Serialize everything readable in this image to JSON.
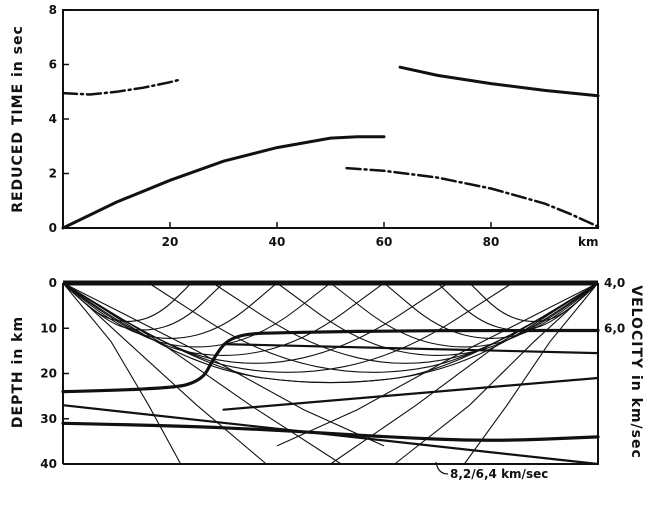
{
  "chart_data": [
    {
      "type": "line",
      "ylabel": "REDUCED TIME in sec",
      "xunit": "km",
      "xlim": [
        0,
        100
      ],
      "ylim": [
        0,
        8
      ],
      "xticks": [
        20,
        40,
        60,
        80
      ],
      "yticks": [
        0,
        2,
        4,
        6,
        8
      ],
      "grid": false,
      "series": [
        {
          "style": "dashdot",
          "x": [
            0,
            5,
            10,
            15,
            20,
            22
          ],
          "y": [
            4.95,
            4.9,
            5.0,
            5.15,
            5.35,
            5.45
          ]
        },
        {
          "style": "solid",
          "x": [
            0,
            10,
            20,
            30,
            40,
            50,
            55,
            60
          ],
          "y": [
            0,
            0.95,
            1.75,
            2.45,
            2.95,
            3.3,
            3.35,
            3.35
          ]
        },
        {
          "style": "dashdot",
          "x": [
            53,
            60,
            70,
            80,
            90,
            95,
            100
          ],
          "y": [
            2.2,
            2.1,
            1.85,
            1.45,
            0.9,
            0.5,
            0.05
          ]
        },
        {
          "style": "solid",
          "x": [
            63,
            70,
            80,
            90,
            100
          ],
          "y": [
            5.9,
            5.6,
            5.3,
            5.05,
            4.85
          ]
        }
      ]
    },
    {
      "type": "line",
      "ylabel": "DEPTH in km",
      "y2label": "VELOCITY in km/sec",
      "xlim": [
        0,
        100
      ],
      "ylim": [
        0,
        40
      ],
      "yticks": [
        0,
        10,
        20,
        30,
        40
      ],
      "right_labels": [
        {
          "y": 0,
          "text": "4,0"
        },
        {
          "y": 10,
          "text": "6,0"
        }
      ],
      "annotation": "8,2/6,4 km/sec",
      "grid": false,
      "boundaries": [
        {
          "x": [
            0,
            20,
            26,
            28,
            30,
            32,
            35,
            40,
            50,
            60,
            80,
            100
          ],
          "y": [
            24,
            23.5,
            21.5,
            17,
            13.5,
            12,
            11.2,
            11,
            10.8,
            10.6,
            10.5,
            10.5
          ]
        },
        {
          "x": [
            0,
            20,
            40,
            60,
            80,
            100
          ],
          "y": [
            31,
            31.5,
            32.5,
            34,
            35,
            34
          ]
        },
        {
          "x": [
            0,
            100
          ],
          "y": [
            27,
            40
          ]
        },
        {
          "x": [
            30,
            100
          ],
          "y": [
            13.5,
            15.5
          ]
        },
        {
          "x": [
            30,
            100
          ],
          "y": [
            28,
            21
          ]
        }
      ],
      "raypaths_from_left": [
        {
          "x": [
            0,
            6,
            12,
            18,
            24
          ],
          "y": [
            0,
            7,
            9,
            7,
            0
          ]
        },
        {
          "x": [
            0,
            7.5,
            15,
            22.5,
            30
          ],
          "y": [
            0,
            8.5,
            11,
            8.5,
            0
          ]
        },
        {
          "x": [
            0,
            10,
            20,
            30,
            40
          ],
          "y": [
            0,
            10,
            13,
            10,
            0
          ]
        },
        {
          "x": [
            0,
            12.5,
            25,
            37.5,
            50
          ],
          "y": [
            0,
            11.5,
            15,
            11.5,
            0
          ]
        },
        {
          "x": [
            0,
            15,
            30,
            45,
            60
          ],
          "y": [
            0,
            13,
            17,
            13,
            0
          ]
        },
        {
          "x": [
            0,
            18,
            36,
            54,
            72
          ],
          "y": [
            0,
            14,
            19,
            14,
            0
          ]
        },
        {
          "x": [
            0,
            21,
            42,
            63,
            84
          ],
          "y": [
            0,
            16,
            21,
            16,
            0
          ]
        },
        {
          "x": [
            0,
            25,
            50,
            75,
            100
          ],
          "y": [
            0,
            19,
            23,
            19,
            0
          ]
        }
      ],
      "raypaths_from_right": [
        {
          "x": [
            100,
            94,
            88,
            82,
            76
          ],
          "y": [
            0,
            7,
            9,
            7,
            0
          ]
        },
        {
          "x": [
            100,
            92.5,
            85,
            77.5,
            70
          ],
          "y": [
            0,
            8.5,
            11,
            8.5,
            0
          ]
        },
        {
          "x": [
            100,
            90,
            80,
            70,
            60
          ],
          "y": [
            0,
            10,
            13,
            10,
            0
          ]
        },
        {
          "x": [
            100,
            87.5,
            75,
            62.5,
            50
          ],
          "y": [
            0,
            11.5,
            15,
            11.5,
            0
          ]
        },
        {
          "x": [
            100,
            85,
            70,
            55,
            40
          ],
          "y": [
            0,
            13,
            17,
            13,
            0
          ]
        },
        {
          "x": [
            100,
            82,
            64,
            46,
            28
          ],
          "y": [
            0,
            14,
            19,
            14,
            0
          ]
        },
        {
          "x": [
            100,
            79,
            58,
            37,
            16
          ],
          "y": [
            0,
            16,
            21,
            16,
            0
          ]
        },
        {
          "x": [
            100,
            75,
            50,
            25,
            0
          ],
          "y": [
            0,
            19,
            23,
            19,
            0
          ]
        }
      ],
      "steep_rays": [
        {
          "x": [
            0,
            18,
            35,
            52
          ],
          "y": [
            0,
            13,
            27,
            40
          ]
        },
        {
          "x": [
            0,
            12,
            25,
            38
          ],
          "y": [
            0,
            13,
            27,
            40
          ]
        },
        {
          "x": [
            0,
            9,
            16,
            22
          ],
          "y": [
            0,
            13,
            27,
            40
          ]
        },
        {
          "x": [
            100,
            82,
            66,
            50
          ],
          "y": [
            0,
            13,
            27,
            40
          ]
        },
        {
          "x": [
            100,
            88,
            76,
            62
          ],
          "y": [
            0,
            13,
            27,
            40
          ]
        },
        {
          "x": [
            100,
            91,
            83,
            75
          ],
          "y": [
            0,
            13,
            27,
            40
          ]
        },
        {
          "x": [
            0,
            25,
            45,
            60
          ],
          "y": [
            0,
            15,
            28,
            36
          ]
        },
        {
          "x": [
            100,
            75,
            55,
            40
          ],
          "y": [
            0,
            15,
            28,
            36
          ]
        }
      ]
    }
  ]
}
